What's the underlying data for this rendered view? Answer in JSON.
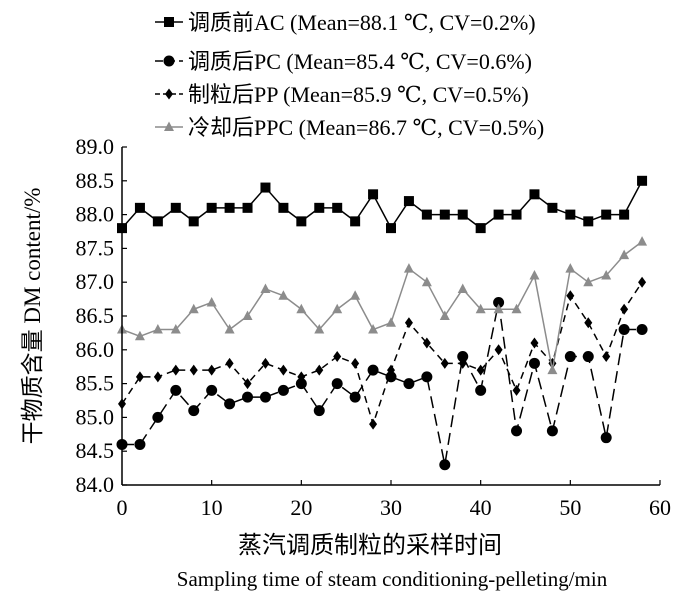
{
  "chart_data": {
    "type": "line",
    "xlabel": "蒸汽调质制粒的采样时间",
    "xlabel_en": "Sampling time of steam conditioning-pelleting/min",
    "ylabel": "干物质含量  DM content/%",
    "xlim": [
      0,
      60
    ],
    "ylim": [
      84.0,
      89.0
    ],
    "x_ticks": [
      "0",
      "10",
      "20",
      "30",
      "40",
      "50",
      "60"
    ],
    "y_ticks": [
      "84.0",
      "84.5",
      "85.0",
      "85.5",
      "86.0",
      "86.5",
      "87.0",
      "87.5",
      "88.0",
      "88.5",
      "89.0"
    ],
    "grid": false,
    "legend_position": "top",
    "x": [
      0,
      2,
      4,
      6,
      8,
      10,
      12,
      14,
      16,
      18,
      20,
      22,
      24,
      26,
      28,
      30,
      32,
      34,
      36,
      38,
      40,
      42,
      44,
      46,
      48,
      50,
      52,
      54,
      56,
      58
    ],
    "series": [
      {
        "name": "调质前AC (Mean=88.1 ℃, CV=0.2%)",
        "marker": "square",
        "dash": "solid",
        "color": "#000000",
        "values": [
          87.8,
          88.1,
          87.9,
          88.1,
          87.9,
          88.1,
          88.1,
          88.1,
          88.4,
          88.1,
          87.9,
          88.1,
          88.1,
          87.9,
          88.3,
          87.8,
          88.2,
          88.0,
          88.0,
          88.0,
          87.8,
          88.0,
          88.0,
          88.3,
          88.1,
          88.0,
          87.9,
          88.0,
          88.0,
          88.5
        ]
      },
      {
        "name": "调质后PC (Mean=85.4 ℃, CV=0.6%)",
        "marker": "circle",
        "dash": "longdash",
        "color": "#000000",
        "values": [
          84.6,
          84.6,
          85.0,
          85.4,
          85.1,
          85.4,
          85.2,
          85.3,
          85.3,
          85.4,
          85.5,
          85.1,
          85.5,
          85.3,
          85.7,
          85.6,
          85.5,
          85.6,
          84.3,
          85.9,
          85.4,
          86.7,
          84.8,
          85.8,
          84.8,
          85.9,
          85.9,
          84.7,
          86.3,
          86.3
        ]
      },
      {
        "name": "制粒后PP (Mean=85.9 ℃, CV=0.5%)",
        "marker": "diamond",
        "dash": "dash",
        "color": "#000000",
        "values": [
          85.2,
          85.6,
          85.6,
          85.7,
          85.7,
          85.7,
          85.8,
          85.5,
          85.8,
          85.7,
          85.6,
          85.7,
          85.9,
          85.8,
          84.9,
          85.7,
          86.4,
          86.1,
          85.8,
          85.8,
          85.7,
          86.0,
          85.4,
          86.1,
          85.8,
          86.8,
          86.4,
          85.9,
          86.6,
          87.0
        ]
      },
      {
        "name": "冷却后PPC (Mean=86.7 ℃, CV=0.5%)",
        "marker": "triangle",
        "dash": "solid",
        "color": "#8c8c8c",
        "values": [
          86.3,
          86.2,
          86.3,
          86.3,
          86.6,
          86.7,
          86.3,
          86.5,
          86.9,
          86.8,
          86.6,
          86.3,
          86.6,
          86.8,
          86.3,
          86.4,
          87.2,
          87.0,
          86.5,
          86.9,
          86.6,
          86.6,
          86.6,
          87.1,
          85.7,
          87.2,
          87.0,
          87.1,
          87.4,
          87.6
        ]
      }
    ]
  }
}
